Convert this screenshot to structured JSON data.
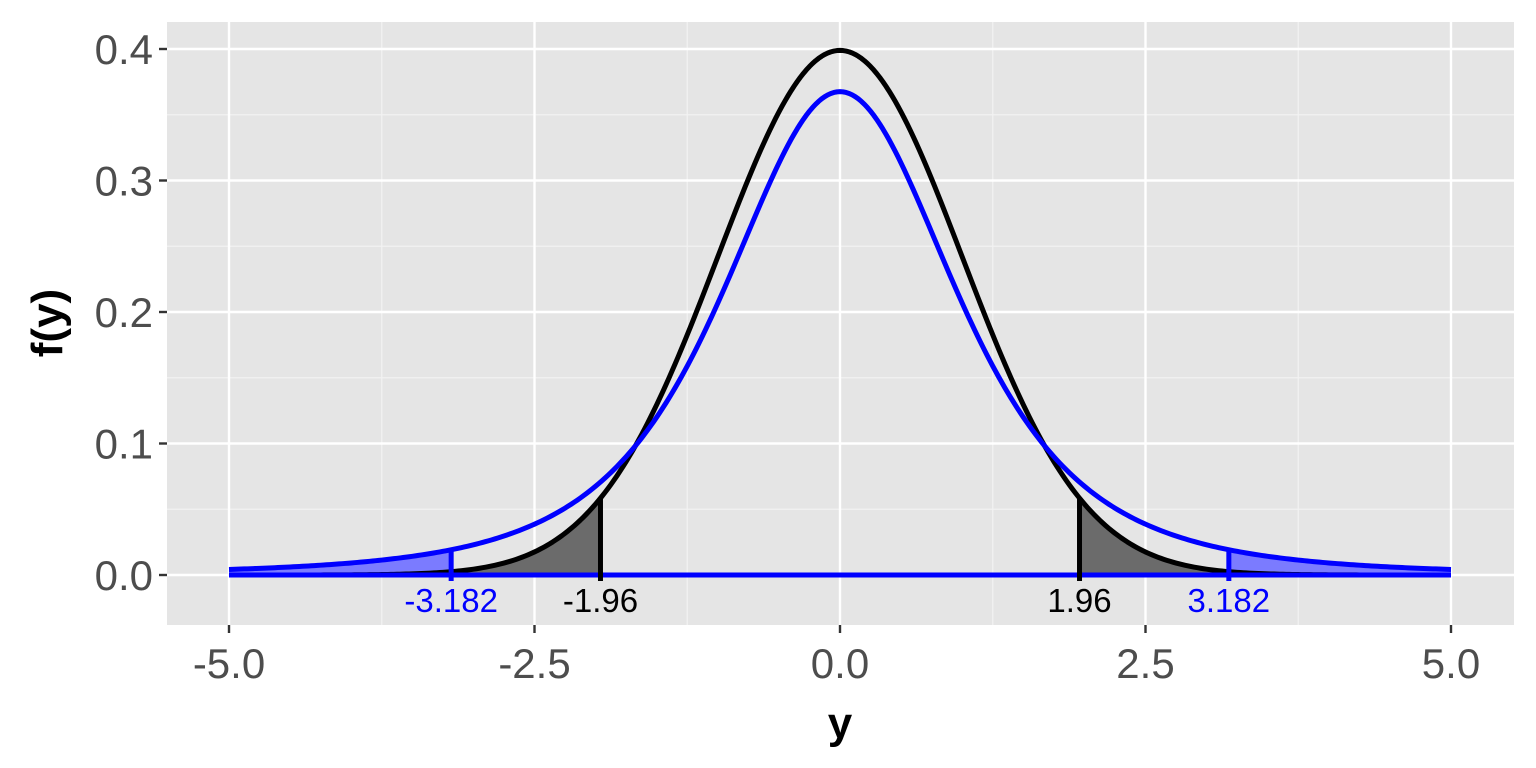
{
  "chart_data": {
    "type": "line",
    "title": "",
    "xlabel": "y",
    "ylabel": "f(y)",
    "xlim": [
      -5.0,
      5.0
    ],
    "ylim": [
      0.0,
      0.4
    ],
    "grid": true,
    "x_ticks": [
      -5.0,
      -2.5,
      0.0,
      2.5,
      5.0
    ],
    "x_tick_labels": [
      "-5.0",
      "-2.5",
      "0.0",
      "2.5",
      "5.0"
    ],
    "y_ticks": [
      0.0,
      0.1,
      0.2,
      0.3,
      0.4
    ],
    "y_tick_labels": [
      "0.0",
      "0.1",
      "0.2",
      "0.3",
      "0.4"
    ],
    "series": [
      {
        "distribution": "normal",
        "color": "#000000",
        "critical_values": [
          -1.96,
          1.96
        ],
        "critical_labels": [
          "-1.96",
          "1.96"
        ],
        "tail_fill": "#6b6b6b"
      },
      {
        "distribution": "student-t",
        "df": 3,
        "color": "#0000ff",
        "critical_values": [
          -3.182,
          3.182
        ],
        "critical_labels": [
          "-3.182",
          "3.182"
        ],
        "tail_fill": "#7b7bff"
      }
    ]
  }
}
